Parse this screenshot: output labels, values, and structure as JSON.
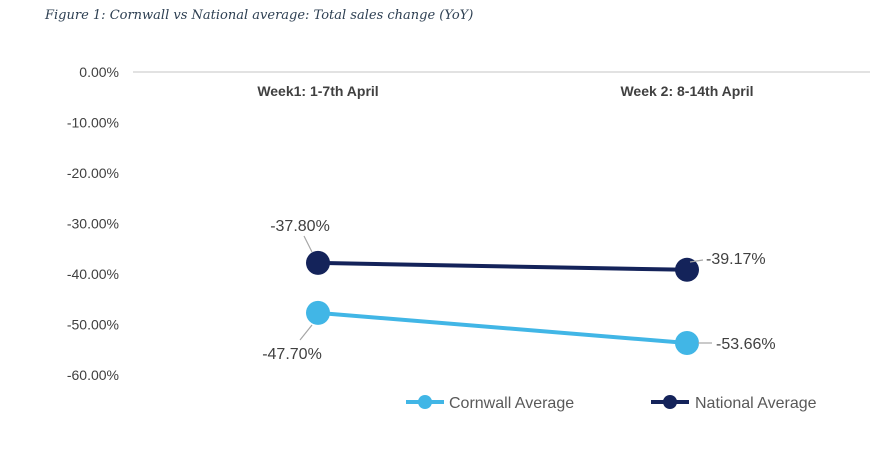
{
  "chart_data": {
    "type": "line",
    "title": "Figure 1: Cornwall vs National average: Total sales change (YoY)",
    "categories": [
      "Week1: 1-7th April",
      "Week 2: 8-14th April"
    ],
    "y_ticks": [
      "0.00%",
      "-10.00%",
      "-20.00%",
      "-30.00%",
      "-40.00%",
      "-50.00%",
      "-60.00%"
    ],
    "ylim": [
      -60,
      0
    ],
    "grid": false,
    "legend_position": "bottom",
    "series": [
      {
        "name": "Cornwall Average",
        "color": "#41b6e6",
        "values": [
          -47.7,
          -53.66
        ],
        "labels": [
          "-47.70%",
          "-53.66%"
        ]
      },
      {
        "name": "National Average",
        "color": "#14235a",
        "values": [
          -37.8,
          -39.17
        ],
        "labels": [
          "-37.80%",
          "-39.17%"
        ]
      }
    ]
  }
}
